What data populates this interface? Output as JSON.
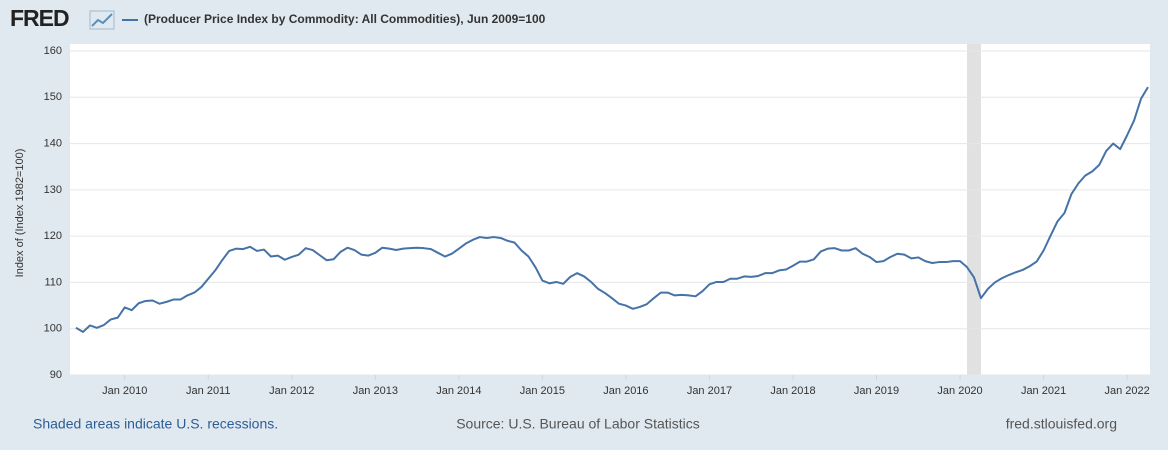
{
  "chart_data": {
    "type": "line",
    "logo": "FRED",
    "title": "(Producer Price Index by Commodity: All Commodities), Jun 2009=100",
    "ylabel": "Index of (Index 1982=100)",
    "footer_left": "Shaded areas indicate U.S. recessions.",
    "footer_center": "Source: U.S. Bureau of Labor Statistics",
    "footer_right": "fred.stlouisfed.org",
    "grid": true,
    "recessions": [
      {
        "start": "2020-02",
        "end": "2020-04"
      }
    ],
    "xlim": [
      "2009-06",
      "2022-04"
    ],
    "ylim": [
      90,
      160
    ],
    "yticks": [
      90,
      100,
      110,
      120,
      130,
      140,
      150,
      160
    ],
    "xticks": [
      {
        "value": "2010-01",
        "label": "Jan 2010"
      },
      {
        "value": "2011-01",
        "label": "Jan 2011"
      },
      {
        "value": "2012-01",
        "label": "Jan 2012"
      },
      {
        "value": "2013-01",
        "label": "Jan 2013"
      },
      {
        "value": "2014-01",
        "label": "Jan 2014"
      },
      {
        "value": "2015-01",
        "label": "Jan 2015"
      },
      {
        "value": "2016-01",
        "label": "Jan 2016"
      },
      {
        "value": "2017-01",
        "label": "Jan 2017"
      },
      {
        "value": "2018-01",
        "label": "Jan 2018"
      },
      {
        "value": "2019-01",
        "label": "Jan 2019"
      },
      {
        "value": "2020-01",
        "label": "Jan 2020"
      },
      {
        "value": "2021-01",
        "label": "Jan 2021"
      },
      {
        "value": "2022-01",
        "label": "Jan 2022"
      }
    ],
    "x": [
      "2009-06",
      "2009-07",
      "2009-08",
      "2009-09",
      "2009-10",
      "2009-11",
      "2009-12",
      "2010-01",
      "2010-02",
      "2010-03",
      "2010-04",
      "2010-05",
      "2010-06",
      "2010-07",
      "2010-08",
      "2010-09",
      "2010-10",
      "2010-11",
      "2010-12",
      "2011-01",
      "2011-02",
      "2011-03",
      "2011-04",
      "2011-05",
      "2011-06",
      "2011-07",
      "2011-08",
      "2011-09",
      "2011-10",
      "2011-11",
      "2011-12",
      "2012-01",
      "2012-02",
      "2012-03",
      "2012-04",
      "2012-05",
      "2012-06",
      "2012-07",
      "2012-08",
      "2012-09",
      "2012-10",
      "2012-11",
      "2012-12",
      "2013-01",
      "2013-02",
      "2013-03",
      "2013-04",
      "2013-05",
      "2013-06",
      "2013-07",
      "2013-08",
      "2013-09",
      "2013-10",
      "2013-11",
      "2013-12",
      "2014-01",
      "2014-02",
      "2014-03",
      "2014-04",
      "2014-05",
      "2014-06",
      "2014-07",
      "2014-08",
      "2014-09",
      "2014-10",
      "2014-11",
      "2014-12",
      "2015-01",
      "2015-02",
      "2015-03",
      "2015-04",
      "2015-05",
      "2015-06",
      "2015-07",
      "2015-08",
      "2015-09",
      "2015-10",
      "2015-11",
      "2015-12",
      "2016-01",
      "2016-02",
      "2016-03",
      "2016-04",
      "2016-05",
      "2016-06",
      "2016-07",
      "2016-08",
      "2016-09",
      "2016-10",
      "2016-11",
      "2016-12",
      "2017-01",
      "2017-02",
      "2017-03",
      "2017-04",
      "2017-05",
      "2017-06",
      "2017-07",
      "2017-08",
      "2017-09",
      "2017-10",
      "2017-11",
      "2017-12",
      "2018-01",
      "2018-02",
      "2018-03",
      "2018-04",
      "2018-05",
      "2018-06",
      "2018-07",
      "2018-08",
      "2018-09",
      "2018-10",
      "2018-11",
      "2018-12",
      "2019-01",
      "2019-02",
      "2019-03",
      "2019-04",
      "2019-05",
      "2019-06",
      "2019-07",
      "2019-08",
      "2019-09",
      "2019-10",
      "2019-11",
      "2019-12",
      "2020-01",
      "2020-02",
      "2020-03",
      "2020-04",
      "2020-05",
      "2020-06",
      "2020-07",
      "2020-08",
      "2020-09",
      "2020-10",
      "2020-11",
      "2020-12",
      "2021-01",
      "2021-02",
      "2021-03",
      "2021-04",
      "2021-05",
      "2021-06",
      "2021-07",
      "2021-08",
      "2021-09",
      "2021-10",
      "2021-11",
      "2021-12",
      "2022-01",
      "2022-02",
      "2022-03",
      "2022-04"
    ],
    "series": [
      {
        "name": "(Producer Price Index by Commodity: All Commodities), Jun 2009=100",
        "color": "#4572a7",
        "values": [
          100.2,
          99.3,
          100.7,
          100.2,
          100.8,
          102.0,
          102.4,
          104.6,
          104.0,
          105.5,
          106.0,
          106.1,
          105.4,
          105.8,
          106.3,
          106.3,
          107.2,
          107.8,
          109.0,
          110.8,
          112.6,
          114.8,
          116.8,
          117.3,
          117.2,
          117.7,
          116.8,
          117.1,
          115.6,
          115.8,
          114.9,
          115.5,
          116.0,
          117.4,
          117.0,
          115.9,
          114.8,
          115.0,
          116.6,
          117.5,
          117.0,
          116.0,
          115.8,
          116.4,
          117.5,
          117.3,
          117.0,
          117.3,
          117.4,
          117.5,
          117.4,
          117.2,
          116.4,
          115.6,
          116.2,
          117.3,
          118.4,
          119.2,
          119.8,
          119.6,
          119.8,
          119.6,
          119.0,
          118.6,
          116.9,
          115.6,
          113.3,
          110.4,
          109.8,
          110.1,
          109.7,
          111.2,
          112.0,
          111.3,
          110.1,
          108.6,
          107.7,
          106.6,
          105.4,
          105.0,
          104.3,
          104.7,
          105.3,
          106.6,
          107.8,
          107.8,
          107.2,
          107.3,
          107.2,
          107.0,
          108.1,
          109.6,
          110.1,
          110.1,
          110.8,
          110.8,
          111.3,
          111.2,
          111.4,
          112.0,
          112.0,
          112.6,
          112.8,
          113.6,
          114.5,
          114.5,
          115.0,
          116.7,
          117.3,
          117.4,
          116.9,
          116.9,
          117.4,
          116.2,
          115.5,
          114.4,
          114.6,
          115.5,
          116.2,
          116.0,
          115.2,
          115.4,
          114.6,
          114.2,
          114.4,
          114.4,
          114.6,
          114.6,
          113.3,
          111.1,
          106.6,
          108.6,
          110.0,
          110.9,
          111.6,
          112.2,
          112.7,
          113.5,
          114.5,
          116.9,
          120.1,
          123.2,
          125.0,
          129.1,
          131.4,
          133.1,
          134.0,
          135.4,
          138.4,
          140.0,
          138.8,
          141.8,
          145.0,
          149.7,
          152.2
        ]
      }
    ]
  }
}
